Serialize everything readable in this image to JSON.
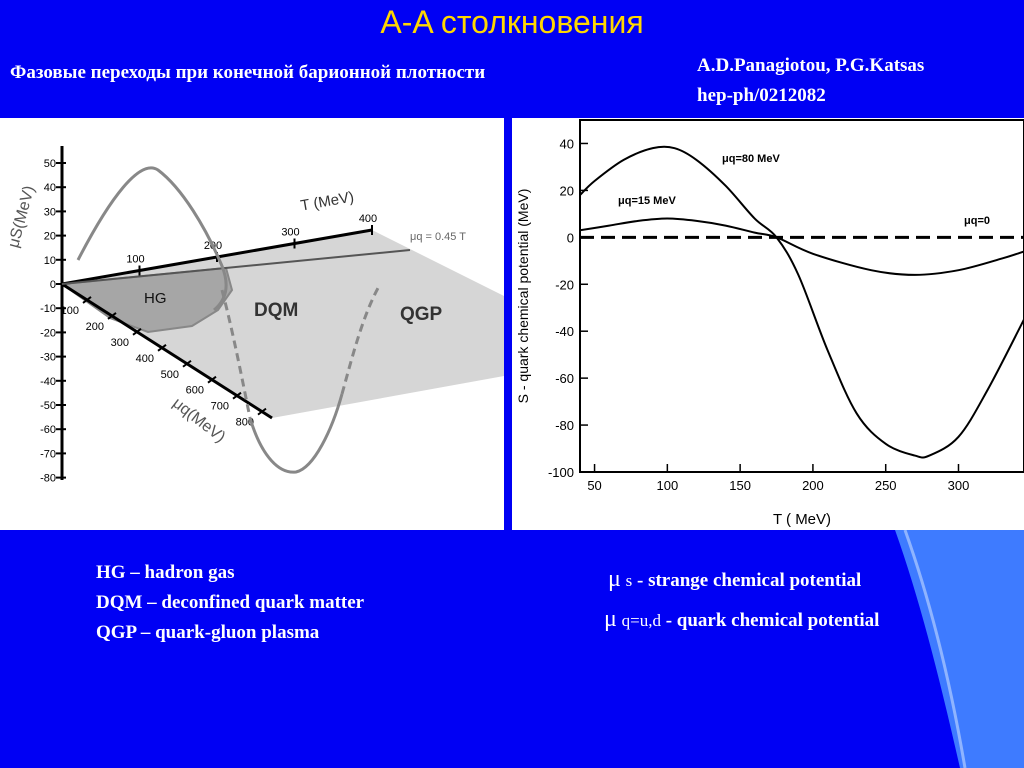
{
  "slide": {
    "title": "A-A столкновения",
    "subtitle": "Фазовые переходы при конечной барионной плотности",
    "authors": "A.D.Panagiotou, P.G.Katsas",
    "reference": "hep-ph/0212082"
  },
  "legend": [
    "HG – hadron gas",
    "DQM – deconfined quark matter",
    "QGP – quark-gluon plasma"
  ],
  "definitions": [
    {
      "symbol": "μ",
      "subscript": "s",
      "text": "- strange chemical potential"
    },
    {
      "symbol": "μ",
      "subscript": "q=u,d",
      "text": "- quark chemical potential"
    }
  ],
  "chart_data": [
    {
      "type": "3d-phase-diagram",
      "ylabel": "μS(MeV)",
      "y_ticks": [
        50,
        40,
        30,
        20,
        10,
        0,
        -10,
        -20,
        -30,
        -40,
        -50,
        -60,
        -70,
        -80
      ],
      "t_axis_label": "T (MeV)",
      "t_ticks": [
        100,
        200,
        300,
        400
      ],
      "muq_axis_label": "μq(MeV)",
      "muq_ticks": [
        100,
        200,
        300,
        400,
        500,
        600,
        700,
        800
      ],
      "line_label": "μq = 0.45 T",
      "regions": [
        "HG",
        "DQM",
        "QGP"
      ]
    },
    {
      "type": "line",
      "xlabel": "T ( MeV)",
      "ylabel": "S - quark chemical potential  (MeV)",
      "xlim": [
        40,
        345
      ],
      "ylim": [
        -100,
        50
      ],
      "x_ticks": [
        50,
        100,
        150,
        200,
        250,
        300
      ],
      "y_ticks": [
        40,
        20,
        0,
        -20,
        -40,
        -60,
        -80,
        -100
      ],
      "series": [
        {
          "name": "μq=80 MeV",
          "style": "solid",
          "x": [
            40,
            50,
            70,
            90,
            105,
            120,
            140,
            160,
            175,
            190,
            210,
            230,
            250,
            270,
            280,
            300,
            320,
            345
          ],
          "y": [
            18,
            24,
            33,
            38,
            38,
            33,
            22,
            8,
            0,
            -16,
            -48,
            -75,
            -88,
            -93,
            -93,
            -85,
            -65,
            -35
          ]
        },
        {
          "name": "μq=15 MeV",
          "style": "solid",
          "x": [
            40,
            60,
            80,
            100,
            120,
            140,
            160,
            175,
            200,
            240,
            270,
            300,
            330,
            345
          ],
          "y": [
            3,
            5,
            7,
            8,
            7,
            5,
            2,
            0,
            -7,
            -14,
            -16,
            -14,
            -9,
            -6
          ]
        },
        {
          "name": "μq=0",
          "style": "dashed",
          "x": [
            40,
            345
          ],
          "y": [
            0,
            0
          ]
        }
      ]
    }
  ]
}
